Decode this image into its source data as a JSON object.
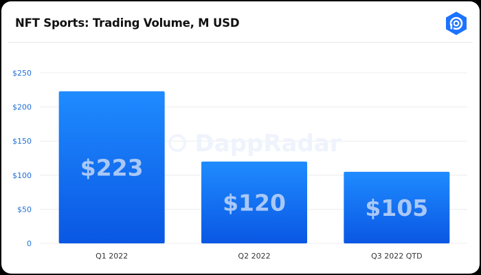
{
  "header": {
    "title": "NFT Sports: Trading Volume, M USD",
    "logo_icon": "dappradar-logo-icon"
  },
  "watermark": "DappRadar",
  "colors": {
    "bar_top": "#1f8bff",
    "bar_bottom": "#0a57e3",
    "axis_text": "#1f6fd6",
    "grid": "#ececec",
    "bar_label": "#a9c8f7",
    "logo": "#1c73ff"
  },
  "chart_data": {
    "type": "bar",
    "categories": [
      "Q1 2022",
      "Q2 2022",
      "Q3 2022 QTD"
    ],
    "values": [
      223,
      120,
      105
    ],
    "data_labels": [
      "$223",
      "$120",
      "$105"
    ],
    "ylim": [
      0,
      250
    ],
    "yticks": [
      0,
      50,
      100,
      150,
      200,
      250
    ],
    "ytick_labels": [
      "0",
      "$50",
      "$100",
      "$150",
      "$200",
      "$250"
    ],
    "grid": true,
    "xlabel": "",
    "ylabel": ""
  }
}
